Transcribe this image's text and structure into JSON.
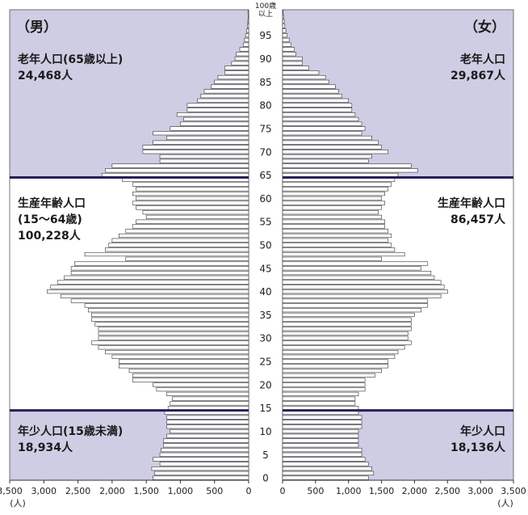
{
  "panels": {
    "male": {
      "label": "（男）"
    },
    "female": {
      "label": "（女）"
    }
  },
  "groups": {
    "male": {
      "elderly": [
        "老年人口(65歳以上)",
        "24,468人"
      ],
      "working": [
        "生産年齢人口",
        "(15～64歳)",
        "100,228人"
      ],
      "young": [
        "年少人口(15歳未満)",
        "18,934人"
      ]
    },
    "female": {
      "elderly": [
        "老年人口",
        "29,867人"
      ],
      "working": [
        "生産年齢人口",
        "86,457人"
      ],
      "young": [
        "年少人口",
        "18,136人"
      ]
    }
  },
  "age_top_label": [
    "100歳",
    "以上"
  ],
  "axis_unit": "(人)",
  "colors": {
    "elderly_bg": "#cfcde4",
    "working_bg": "#ffffff",
    "young_bg": "#cfcde4",
    "divider": "#25205a",
    "bar": "#ffffff",
    "bar_stroke": "#333333"
  },
  "chart_data": {
    "type": "bar",
    "orientation": "horizontal",
    "title": "",
    "ages": [
      0,
      1,
      2,
      3,
      4,
      5,
      6,
      7,
      8,
      9,
      10,
      11,
      12,
      13,
      14,
      15,
      16,
      17,
      18,
      19,
      20,
      21,
      22,
      23,
      24,
      25,
      26,
      27,
      28,
      29,
      30,
      31,
      32,
      33,
      34,
      35,
      36,
      37,
      38,
      39,
      40,
      41,
      42,
      43,
      44,
      45,
      46,
      47,
      48,
      49,
      50,
      51,
      52,
      53,
      54,
      55,
      56,
      57,
      58,
      59,
      60,
      61,
      62,
      63,
      64,
      65,
      66,
      67,
      68,
      69,
      70,
      71,
      72,
      73,
      74,
      75,
      76,
      77,
      78,
      79,
      80,
      81,
      82,
      83,
      84,
      85,
      86,
      87,
      88,
      89,
      90,
      91,
      92,
      93,
      94,
      95,
      96,
      97,
      98,
      99,
      "100歳以上"
    ],
    "age_ticks": [
      0,
      5,
      10,
      15,
      20,
      25,
      30,
      35,
      40,
      45,
      50,
      55,
      60,
      65,
      70,
      75,
      80,
      85,
      90,
      95
    ],
    "xlim": [
      0,
      3500
    ],
    "xticks": [
      0,
      500,
      1000,
      1500,
      2000,
      2500,
      3000,
      3500
    ],
    "xtick_labels": [
      "0",
      "500",
      "1,000",
      "1,500",
      "2,000",
      "2,500",
      "3,000",
      "3,500"
    ],
    "xlabel": "(人)",
    "series": [
      {
        "name": "男",
        "values": [
          1400,
          1380,
          1420,
          1300,
          1400,
          1300,
          1280,
          1250,
          1250,
          1200,
          1150,
          1200,
          1200,
          1200,
          1230,
          1180,
          1150,
          1120,
          1200,
          1350,
          1400,
          1700,
          1700,
          1750,
          1900,
          1900,
          2000,
          2100,
          2200,
          2300,
          2200,
          2200,
          2200,
          2250,
          2300,
          2300,
          2350,
          2400,
          2600,
          2750,
          2950,
          2900,
          2800,
          2700,
          2600,
          2600,
          2550,
          1800,
          2400,
          2100,
          2050,
          2000,
          1900,
          1800,
          1700,
          1650,
          1500,
          1550,
          1650,
          1700,
          1650,
          1700,
          1650,
          1700,
          1850,
          2150,
          2100,
          2000,
          1300,
          1300,
          1550,
          1550,
          1400,
          1200,
          1400,
          1150,
          1000,
          950,
          1050,
          900,
          900,
          750,
          700,
          650,
          550,
          500,
          450,
          350,
          350,
          250,
          200,
          180,
          130,
          80,
          60,
          45,
          30,
          20,
          12,
          8,
          10
        ]
      },
      {
        "name": "女",
        "values": [
          1300,
          1380,
          1350,
          1300,
          1250,
          1200,
          1200,
          1150,
          1150,
          1150,
          1150,
          1200,
          1200,
          1200,
          1150,
          1150,
          1100,
          1100,
          1150,
          1250,
          1250,
          1250,
          1400,
          1500,
          1600,
          1600,
          1700,
          1750,
          1850,
          1950,
          1900,
          1900,
          1950,
          1950,
          1950,
          2000,
          2100,
          2200,
          2200,
          2400,
          2500,
          2450,
          2400,
          2300,
          2250,
          2100,
          2200,
          1500,
          1850,
          1700,
          1650,
          1600,
          1650,
          1600,
          1550,
          1550,
          1500,
          1450,
          1500,
          1550,
          1500,
          1550,
          1600,
          1650,
          1700,
          1750,
          2050,
          1950,
          1300,
          1350,
          1600,
          1500,
          1450,
          1350,
          1200,
          1250,
          1200,
          1150,
          1100,
          1050,
          1050,
          1000,
          900,
          850,
          800,
          700,
          650,
          550,
          400,
          300,
          300,
          200,
          180,
          130,
          100,
          70,
          50,
          35,
          25,
          15,
          10
        ]
      }
    ]
  }
}
